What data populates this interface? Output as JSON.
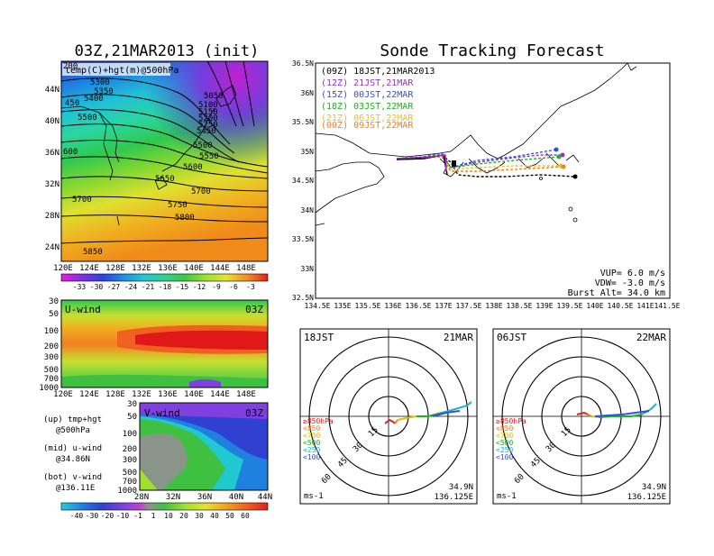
{
  "left": {
    "title": "03Z,21MAR2013 (init)",
    "top_panel": {
      "label": "temp(C)+hgt(m)@500hPa",
      "lon_ticks": [
        "120E",
        "124E",
        "128E",
        "132E",
        "136E",
        "140E",
        "144E",
        "148E"
      ],
      "lat_ticks": [
        "44N",
        "40N",
        "36N",
        "32N",
        "28N",
        "24N"
      ],
      "contour_labels": [
        "5300",
        "5350",
        "5400",
        "5450",
        "5500",
        "5550",
        "5600",
        "5650",
        "5700",
        "5750",
        "5800",
        "5850",
        "5050",
        "5100",
        "5150",
        "5200",
        "5250",
        "5300",
        "5350",
        "5400",
        "5450",
        "5500",
        "5550",
        "5600",
        "5650",
        "5700",
        "450",
        "5500",
        "600",
        "5700",
        "200"
      ],
      "colorbar_labels": [
        "-33",
        "-30",
        "-27",
        "-24",
        "-21",
        "-18",
        "-15",
        "-12",
        "-9",
        "-6",
        "-3"
      ]
    },
    "mid_panel": {
      "label": "U-wind",
      "time": "03Z",
      "p_ticks": [
        "30",
        "50",
        "100",
        "200",
        "300",
        "500",
        "700",
        "1000"
      ],
      "lon_ticks": [
        "120E",
        "124E",
        "128E",
        "132E",
        "136E",
        "140E",
        "144E",
        "148E"
      ]
    },
    "bot_panel": {
      "label": "V-wind",
      "time": "03Z",
      "p_ticks": [
        "30",
        "50",
        "100",
        "200",
        "300",
        "500",
        "700",
        "1000"
      ],
      "lat_ticks": [
        "28N",
        "32N",
        "36N",
        "40N",
        "44N"
      ]
    },
    "notes": [
      {
        "a": "(up) tmp+hgt",
        "b": "@500hPa"
      },
      {
        "a": "(mid) u-wind",
        "b": "@34.86N"
      },
      {
        "a": "(bot) v-wind",
        "b": "@136.11E"
      }
    ],
    "wind_colorbar_labels": [
      "-40",
      "-30",
      "-20",
      "-10",
      "-1",
      "1",
      "10",
      "20",
      "30",
      "40",
      "50",
      "60"
    ]
  },
  "right": {
    "title": "Sonde Tracking Forecast",
    "lat_ticks": [
      "36.5N",
      "36N",
      "35.5N",
      "35N",
      "34.5N",
      "34N",
      "33.5N",
      "33N",
      "32.5N"
    ],
    "lon_ticks": [
      "134.5E",
      "135E",
      "135.5E",
      "136E",
      "136.5E",
      "137E",
      "137.5E",
      "138E",
      "138.5E",
      "139E",
      "139.5E",
      "140E",
      "140.5E",
      "141E",
      "141.5E"
    ],
    "legend": [
      {
        "text": "(09Z)  18JST,21MAR2013",
        "color": "#000000"
      },
      {
        "text": "(12Z)  21JST,21MAR",
        "color": "#9b30c8"
      },
      {
        "text": "(15Z)  00JST,22MAR",
        "color": "#3050e0"
      },
      {
        "text": "(18Z)  03JST,22MAR",
        "color": "#20b020"
      },
      {
        "text": "(21Z)  06JST,22MAR",
        "color": "#f0c020"
      },
      {
        "text": "(00Z)  09JST,22MAR",
        "color": "#f08020"
      }
    ],
    "params": [
      "VUP=  6.0  m/s",
      "VDW= -3.0  m/s",
      "Burst Alt= 34.0  km"
    ],
    "polar": [
      {
        "time": "18JST",
        "date": "21MAR",
        "unit": "ms-1",
        "coord1": "34.9N",
        "coord2": "136.125E",
        "rings": [
          "15",
          "30",
          "45",
          "60"
        ]
      },
      {
        "time": "06JST",
        "date": "22MAR",
        "unit": "ms-1",
        "coord1": "34.9N",
        "coord2": "136.125E",
        "rings": [
          "15",
          "30",
          "45",
          "60"
        ]
      }
    ],
    "polar_legend": [
      {
        "text": "≥850hPa",
        "color": "#e02020"
      },
      {
        "text": "<850",
        "color": "#f08020"
      },
      {
        "text": "<700",
        "color": "#e0c000"
      },
      {
        "text": "<500",
        "color": "#20b020"
      },
      {
        "text": "<250",
        "color": "#20b0d0"
      },
      {
        "text": "<100",
        "color": "#3050e0"
      }
    ]
  }
}
